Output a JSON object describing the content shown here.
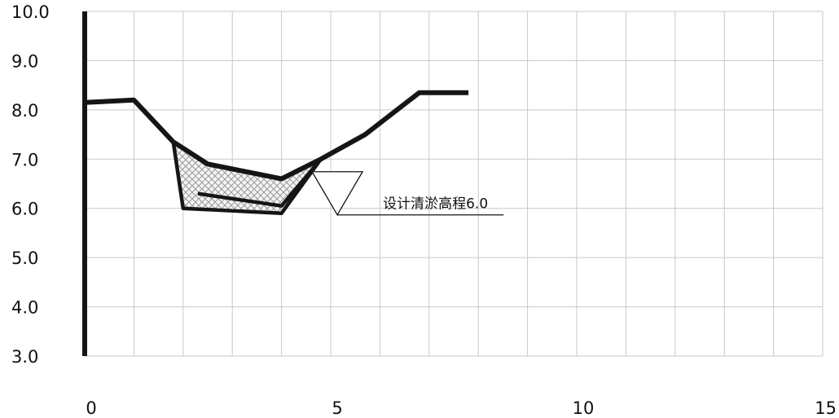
{
  "chart_data": {
    "type": "line",
    "title": "",
    "xlabel": "",
    "ylabel": "",
    "xlim": [
      0,
      15
    ],
    "ylim": [
      3,
      10
    ],
    "x_ticks": [
      "0",
      "5",
      "10",
      "15"
    ],
    "y_ticks": [
      "10.0",
      "9.0",
      "8.0",
      "7.0",
      "6.0",
      "5.0",
      "4.0",
      "3.0"
    ],
    "grid": true,
    "series": [
      {
        "points": [
          [
            0,
            8.15
          ],
          [
            1,
            8.2
          ],
          [
            1.8,
            7.35
          ],
          [
            2.5,
            6.9
          ],
          [
            4,
            6.6
          ],
          [
            4.8,
            7.0
          ],
          [
            5.7,
            7.5
          ],
          [
            6.8,
            8.35
          ],
          [
            7.8,
            8.35
          ]
        ]
      },
      {
        "points": [
          [
            1.8,
            7.35
          ],
          [
            2.0,
            6.0
          ],
          [
            4.0,
            5.9
          ],
          [
            4.8,
            7.0
          ]
        ]
      },
      {
        "points": [
          [
            2.3,
            6.3
          ],
          [
            4.0,
            6.05
          ],
          [
            4.8,
            7.0
          ]
        ]
      }
    ],
    "hatched_region": {
      "points": [
        [
          1.8,
          7.35
        ],
        [
          2.5,
          6.9
        ],
        [
          4,
          6.6
        ],
        [
          4.8,
          7.0
        ],
        [
          4.0,
          5.9
        ],
        [
          2.0,
          6.0
        ]
      ]
    },
    "annotation": {
      "text": "设计清淤高程6.0",
      "x": 5.3,
      "y": 6.0,
      "marker": "water-level-triangle"
    },
    "vertical_axis_x": 0
  }
}
